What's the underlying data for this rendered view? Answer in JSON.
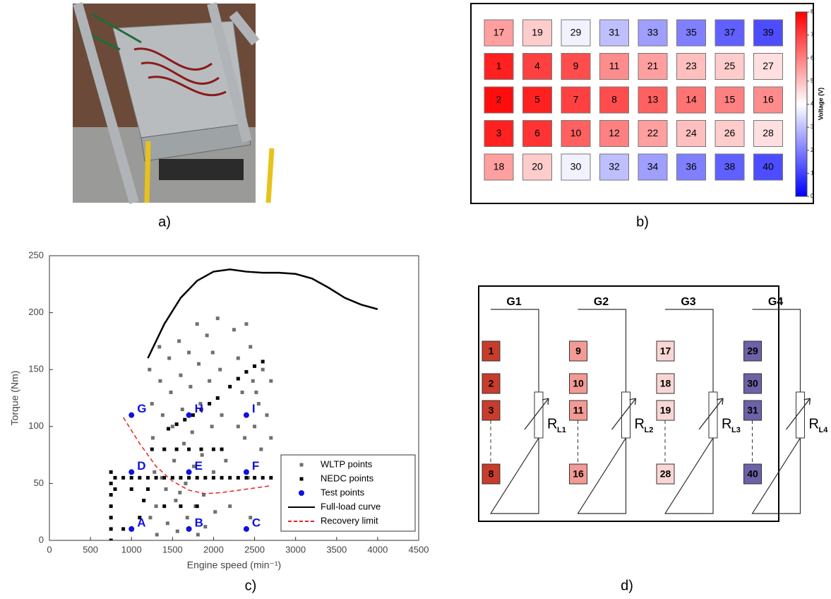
{
  "captions": [
    "a)",
    "b)",
    "c)",
    "d)"
  ],
  "chart_data": [
    {
      "type": "heatmap",
      "cell_labels": [
        [
          17,
          19,
          29,
          31,
          33,
          35,
          37,
          39
        ],
        [
          1,
          4,
          9,
          11,
          21,
          23,
          25,
          27
        ],
        [
          2,
          5,
          7,
          8,
          13,
          14,
          15,
          16
        ],
        [
          3,
          6,
          10,
          12,
          22,
          24,
          26,
          28
        ],
        [
          18,
          20,
          30,
          32,
          34,
          36,
          38,
          40
        ]
      ],
      "values": [
        [
          5.5,
          4.8,
          3.8,
          3.0,
          2.5,
          2.0,
          1.5,
          1.2
        ],
        [
          7.5,
          7.0,
          6.8,
          5.8,
          5.5,
          5.0,
          4.8,
          4.5
        ],
        [
          7.8,
          7.5,
          7.0,
          6.8,
          6.5,
          6.2,
          6.0,
          5.8
        ],
        [
          7.5,
          7.2,
          6.5,
          6.0,
          5.5,
          5.0,
          4.8,
          4.5
        ],
        [
          5.5,
          4.8,
          3.8,
          3.0,
          2.5,
          2.0,
          1.5,
          1.2
        ]
      ],
      "colorbar_label": "Voltage (V)",
      "zlim": [
        0,
        8
      ],
      "zticks": [
        0,
        1,
        2,
        3,
        4,
        5,
        6,
        7,
        8
      ],
      "colormap": [
        "#0000ff",
        "#ffffff",
        "#ff0000"
      ]
    },
    {
      "type": "scatter",
      "xlabel": "Engine speed (min⁻¹)",
      "ylabel": "Torque (Nm)",
      "xlim": [
        0,
        4500
      ],
      "xticks": [
        0,
        500,
        1000,
        1500,
        2000,
        2500,
        3000,
        3500,
        4000,
        4500
      ],
      "ylim": [
        0,
        250
      ],
      "yticks": [
        0,
        50,
        100,
        150,
        200,
        250
      ],
      "legend": "lower right",
      "series": [
        {
          "name": "WLTP points",
          "color": "#707070",
          "style": "square",
          "x": [
            1220,
            1250,
            1260,
            1280,
            1300,
            1310,
            1340,
            1350,
            1380,
            1400,
            1420,
            1440,
            1460,
            1480,
            1500,
            1520,
            1540,
            1560,
            1580,
            1600,
            1620,
            1640,
            1660,
            1680,
            1700,
            1720,
            1740,
            1760,
            1780,
            1800,
            1820,
            1840,
            1860,
            1880,
            1900,
            1920,
            1950,
            1980,
            2000,
            2020,
            2050,
            2080,
            2100,
            2150,
            2200,
            2250,
            2300,
            2350,
            2380,
            2400,
            2420,
            2450,
            2480,
            2500,
            2520,
            2550,
            2580,
            2600,
            2650,
            2700,
            2700,
            1230,
            1370,
            1590,
            1810,
            1990,
            2300,
            2450
          ],
          "values": [
            150,
            120,
            90,
            60,
            30,
            5,
            170,
            140,
            110,
            80,
            45,
            15,
            160,
            130,
            100,
            70,
            35,
            8,
            175,
            145,
            115,
            85,
            50,
            20,
            165,
            135,
            95,
            65,
            30,
            190,
            155,
            120,
            75,
            40,
            12,
            180,
            140,
            100,
            60,
            25,
            195,
            150,
            110,
            70,
            30,
            185,
            160,
            130,
            90,
            190,
            55,
            170,
            140,
            100,
            130,
            120,
            80,
            150,
            110,
            140,
            90,
            20,
            55,
            42,
            5,
            165,
            100,
            20
          ]
        },
        {
          "name": "NEDC points",
          "color": "#000000",
          "style": "square",
          "x": [
            750,
            750,
            750,
            750,
            750,
            750,
            750,
            800,
            900,
            1000,
            1100,
            1200,
            1300,
            1400,
            1500,
            1600,
            1700,
            1800,
            1900,
            2000,
            2100,
            2200,
            2300,
            2400,
            2500,
            2600,
            2700,
            1250,
            1400,
            1550,
            1700,
            1850,
            2000,
            2100,
            800,
            1000,
            1200,
            1400,
            1600,
            1800,
            1450,
            1550,
            1650,
            1750,
            1850,
            1950,
            2050,
            2200,
            2300,
            2400,
            2500,
            2600,
            900,
            1100,
            1150
          ],
          "values": [
            0,
            10,
            20,
            30,
            40,
            50,
            60,
            55,
            55,
            55,
            55,
            55,
            55,
            55,
            55,
            55,
            55,
            55,
            55,
            55,
            55,
            55,
            55,
            55,
            55,
            55,
            55,
            80,
            80,
            80,
            80,
            80,
            80,
            80,
            45,
            45,
            45,
            30,
            30,
            30,
            98,
            102,
            106,
            110,
            115,
            120,
            125,
            135,
            142,
            148,
            153,
            157,
            10,
            20,
            35
          ]
        },
        {
          "name": "Test points",
          "color": "#1010e0",
          "style": "circle",
          "x": [
            1000,
            1700,
            2400,
            1000,
            1700,
            2400,
            1000,
            1700,
            2400
          ],
          "values": [
            10,
            10,
            10,
            60,
            60,
            60,
            110,
            110,
            110
          ],
          "point_labels": [
            "A",
            "B",
            "C",
            "D",
            "E",
            "F",
            "G",
            "H",
            "I"
          ]
        },
        {
          "name": "Full-load curve",
          "color": "#000000",
          "style": "line",
          "x": [
            1200,
            1400,
            1600,
            1800,
            2000,
            2200,
            2400,
            2600,
            2800,
            3000,
            3200,
            3400,
            3600,
            3800,
            4000
          ],
          "values": [
            160,
            190,
            213,
            228,
            236,
            238,
            236,
            235,
            235,
            234,
            230,
            222,
            213,
            207,
            203
          ]
        },
        {
          "name": "Recovery limit",
          "color": "#ee2020",
          "style": "dashed",
          "x": [
            900,
            1100,
            1300,
            1500,
            1700,
            1900,
            2100,
            2300,
            2500,
            2700
          ],
          "values": [
            108,
            85,
            65,
            52,
            44,
            41,
            42,
            44,
            46,
            48
          ]
        }
      ]
    }
  ],
  "diagram": {
    "groups": [
      {
        "label": "G1",
        "cells": [
          "1",
          "2",
          "3",
          "8"
        ],
        "resistor": "R",
        "subscript": "L1",
        "color": "#c83c2c"
      },
      {
        "label": "G2",
        "cells": [
          "9",
          "10",
          "11",
          "16"
        ],
        "resistor": "R",
        "subscript": "L2",
        "color": "#f29a94"
      },
      {
        "label": "G3",
        "cells": [
          "17",
          "18",
          "19",
          "28"
        ],
        "resistor": "R",
        "subscript": "L3",
        "color": "#f9d6d4"
      },
      {
        "label": "G4",
        "cells": [
          "29",
          "30",
          "31",
          "40"
        ],
        "resistor": "R",
        "subscript": "L4",
        "color": "#6b62a8"
      }
    ]
  }
}
